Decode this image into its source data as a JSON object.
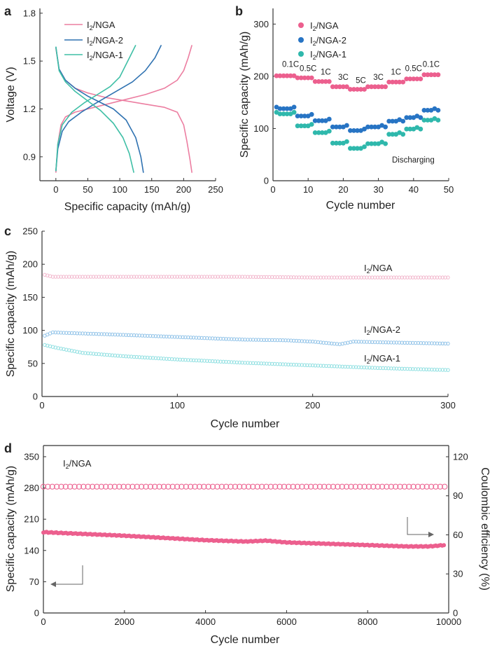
{
  "chart_data": [
    {
      "panel": "a",
      "type": "line",
      "xlabel": "Specific capacity (mAh/g)",
      "ylabel": "Voltage (V)",
      "xlim": [
        -25,
        250
      ],
      "ylim": [
        0.75,
        1.83
      ],
      "xticks": [
        "0",
        "50",
        "100",
        "150",
        "200",
        "250"
      ],
      "yticks": [
        "0.9",
        "1.2",
        "1.5",
        "1.8"
      ],
      "legend": [
        "I2/NGA",
        "I2/NGA-2",
        "I2/NGA-1"
      ],
      "colors": [
        "#ec7ea1",
        "#2f72b1",
        "#3fbfa6"
      ],
      "series": [
        {
          "name": "I2/NGA",
          "color": "#ec7ea1",
          "curves": [
            {
              "x": [
                0,
                5,
                15,
                30,
                50,
                80,
                110,
                140,
                170,
                190,
                200,
                205,
                210,
                213
              ],
              "y": [
                1.58,
                1.45,
                1.38,
                1.33,
                1.3,
                1.27,
                1.25,
                1.23,
                1.21,
                1.18,
                1.1,
                1.0,
                0.88,
                0.8
              ]
            },
            {
              "x": [
                0,
                3,
                8,
                15,
                30,
                50,
                80,
                110,
                140,
                170,
                190,
                200,
                207,
                213
              ],
              "y": [
                0.8,
                0.98,
                1.1,
                1.15,
                1.18,
                1.2,
                1.23,
                1.26,
                1.29,
                1.33,
                1.38,
                1.44,
                1.52,
                1.6
              ]
            }
          ]
        },
        {
          "name": "I2/NGA-2",
          "color": "#2f72b1",
          "curves": [
            {
              "x": [
                0,
                5,
                15,
                30,
                50,
                70,
                90,
                110,
                125,
                133,
                137
              ],
              "y": [
                1.59,
                1.45,
                1.38,
                1.33,
                1.28,
                1.24,
                1.2,
                1.13,
                1.02,
                0.9,
                0.8
              ]
            },
            {
              "x": [
                0,
                3,
                10,
                20,
                40,
                60,
                90,
                120,
                140,
                155,
                165
              ],
              "y": [
                0.81,
                0.95,
                1.06,
                1.12,
                1.18,
                1.23,
                1.3,
                1.37,
                1.44,
                1.52,
                1.6
              ]
            }
          ]
        },
        {
          "name": "I2/NGA-1",
          "color": "#3fbfa6",
          "curves": [
            {
              "x": [
                0,
                5,
                15,
                30,
                50,
                70,
                90,
                105,
                115,
                122
              ],
              "y": [
                1.59,
                1.44,
                1.37,
                1.31,
                1.25,
                1.19,
                1.11,
                1.02,
                0.92,
                0.8
              ]
            },
            {
              "x": [
                0,
                3,
                10,
                25,
                45,
                65,
                85,
                100,
                115,
                125
              ],
              "y": [
                0.81,
                0.98,
                1.1,
                1.18,
                1.24,
                1.29,
                1.34,
                1.4,
                1.52,
                1.6
              ]
            }
          ]
        }
      ]
    },
    {
      "panel": "b",
      "type": "scatter",
      "xlabel": "Cycle number",
      "ylabel": "Specific capacity (mAh/g)",
      "xlim": [
        0,
        50
      ],
      "ylim": [
        0,
        330
      ],
      "xticks": [
        "0",
        "10",
        "20",
        "30",
        "40",
        "50"
      ],
      "yticks": [
        "0",
        "100",
        "200",
        "300"
      ],
      "legend": [
        "I2/NGA",
        "I2/NGA-2",
        "I2/NGA-1"
      ],
      "annotation": "Discharging",
      "rate_labels": [
        {
          "text": "0.1C",
          "x": 5,
          "y": 218
        },
        {
          "text": "0.5C",
          "x": 10,
          "y": 210
        },
        {
          "text": "1C",
          "x": 15,
          "y": 203
        },
        {
          "text": "3C",
          "x": 20,
          "y": 193
        },
        {
          "text": "5C",
          "x": 25,
          "y": 187
        },
        {
          "text": "3C",
          "x": 30,
          "y": 193
        },
        {
          "text": "1C",
          "x": 35,
          "y": 203
        },
        {
          "text": "0.5C",
          "x": 40,
          "y": 210
        },
        {
          "text": "0.1C",
          "x": 45,
          "y": 218
        }
      ],
      "step_values": {
        "I2/NGA": [
          201,
          197,
          190,
          180,
          175,
          180,
          189,
          195,
          203
        ],
        "I2/NGA-2": [
          138,
          124,
          115,
          103,
          96,
          103,
          114,
          121,
          135
        ],
        "I2/NGA-1": [
          128,
          105,
          92,
          72,
          62,
          71,
          89,
          99,
          116
        ]
      },
      "series": [
        {
          "name": "I2/NGA",
          "color": "#ec5f8e"
        },
        {
          "name": "I2/NGA-2",
          "color": "#2774c4"
        },
        {
          "name": "I2/NGA-1",
          "color": "#2fb8ac"
        }
      ]
    },
    {
      "panel": "c",
      "type": "scatter",
      "xlabel": "Cycle number",
      "ylabel": "Specific capacity (mAh/g)",
      "xlim": [
        0,
        300
      ],
      "ylim": [
        0,
        250
      ],
      "xticks": [
        "0",
        "100",
        "200",
        "300"
      ],
      "yticks": [
        "0",
        "50",
        "100",
        "150",
        "200",
        "250"
      ],
      "series": [
        {
          "name": "I2/NGA",
          "color": "#f2b6cc",
          "points": [
            [
              2,
              184
            ],
            [
              8,
              181
            ],
            [
              30,
              181
            ],
            [
              100,
              181
            ],
            [
              150,
              181
            ],
            [
              200,
              180
            ],
            [
              250,
              180
            ],
            [
              300,
              180
            ]
          ]
        },
        {
          "name": "I2/NGA-2",
          "color": "#8fc2e8",
          "points": [
            [
              2,
              92
            ],
            [
              8,
              97
            ],
            [
              20,
              96
            ],
            [
              50,
              94
            ],
            [
              100,
              90
            ],
            [
              150,
              86
            ],
            [
              180,
              85
            ],
            [
              200,
              83
            ],
            [
              220,
              79
            ],
            [
              230,
              83
            ],
            [
              250,
              82
            ],
            [
              300,
              80
            ]
          ]
        },
        {
          "name": "I2/NGA-1",
          "color": "#8edfe1",
          "points": [
            [
              2,
              78
            ],
            [
              10,
              74
            ],
            [
              30,
              66
            ],
            [
              60,
              61
            ],
            [
              100,
              56
            ],
            [
              150,
              51
            ],
            [
              200,
              47
            ],
            [
              250,
              43
            ],
            [
              300,
              40
            ]
          ]
        }
      ]
    },
    {
      "panel": "d",
      "type": "scatter",
      "xlabel": "Cycle number",
      "ylabel": "Specific capacity (mAh/g)",
      "y2label": "Coulombic efficiency (%)",
      "xlim": [
        0,
        10000
      ],
      "ylim": [
        0,
        375
      ],
      "y2lim": [
        0,
        128.6
      ],
      "xticks": [
        "0",
        "2000",
        "4000",
        "6000",
        "8000",
        "10000"
      ],
      "yticks": [
        "0",
        "70",
        "140",
        "210",
        "280",
        "350"
      ],
      "y2ticks": [
        "0",
        "30",
        "60",
        "90",
        "120"
      ],
      "annotation": "I2/NGA",
      "series": [
        {
          "name": "Specific capacity",
          "axis": "left",
          "color": "#ec5f8e",
          "points": [
            [
              0,
              181
            ],
            [
              1000,
              177
            ],
            [
              2000,
              173
            ],
            [
              3000,
              168
            ],
            [
              4000,
              163
            ],
            [
              5000,
              160
            ],
            [
              5500,
              162
            ],
            [
              6000,
              158
            ],
            [
              7000,
              155
            ],
            [
              8000,
              152
            ],
            [
              9000,
              149
            ],
            [
              9500,
              149
            ],
            [
              9900,
              152
            ]
          ]
        },
        {
          "name": "Coulombic efficiency",
          "axis": "right",
          "color": "#ec5f8e",
          "points": [
            [
              0,
              97
            ],
            [
              10000,
              97
            ]
          ]
        }
      ]
    }
  ]
}
